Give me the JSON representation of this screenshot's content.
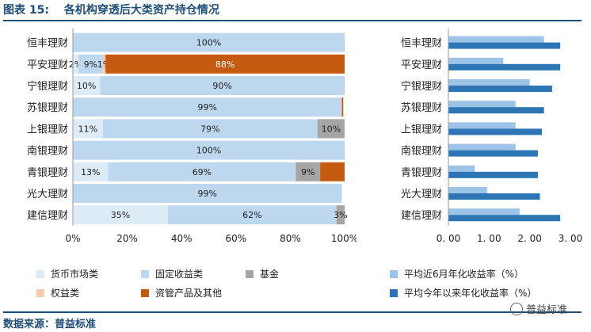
{
  "title": {
    "figure_no": "图表 15:",
    "text": "各机构穿透后大类资产持仓情况"
  },
  "source": "数据来源：普益标准",
  "watermark": "普益标准",
  "colors": {
    "money_market": "#ddebf7",
    "fixed_income": "#bdd7ee",
    "fund": "#a5a5a5",
    "equity": "#f8cbad",
    "asset_mgmt": "#c55a11",
    "six_month": "#9dc3e6",
    "ytd": "#2e75b6"
  },
  "legend_left": [
    {
      "key": "money_market",
      "label": "货币市场类"
    },
    {
      "key": "fixed_income",
      "label": "固定收益类"
    },
    {
      "key": "fund",
      "label": "基金"
    },
    {
      "key": "equity",
      "label": "权益类"
    },
    {
      "key": "asset_mgmt",
      "label": "资管产品及其他"
    }
  ],
  "legend_right": [
    {
      "key": "six_month",
      "label": "平均近6月年化收益率（%）"
    },
    {
      "key": "ytd",
      "label": "平均今年以来年化收益率（%）"
    }
  ],
  "chart_data": [
    {
      "type": "bar",
      "orientation": "horizontal",
      "stacked": "percent",
      "categories": [
        "恒丰理财",
        "平安理财",
        "宁银理财",
        "苏银理财",
        "上银理财",
        "南银理财",
        "青银理财",
        "光大理财",
        "建信理财"
      ],
      "xlim": [
        0,
        100
      ],
      "xticks": [
        "0%",
        "20%",
        "40%",
        "60%",
        "80%",
        "100%"
      ],
      "series": [
        {
          "name": "货币市场类",
          "values": [
            0,
            2,
            10,
            0,
            11,
            0,
            13,
            0,
            35
          ],
          "labels": [
            "",
            "2%",
            "10%",
            "",
            "11%",
            "",
            "13%",
            "",
            "35%"
          ]
        },
        {
          "name": "固定收益类",
          "values": [
            100,
            9,
            90,
            99,
            79,
            100,
            69,
            99,
            62
          ],
          "labels": [
            "100%",
            "9%",
            "90%",
            "99%",
            "79%",
            "100%",
            "69%",
            "99%",
            "62%"
          ]
        },
        {
          "name": "基金",
          "values": [
            0,
            0,
            0,
            0,
            10,
            0,
            9,
            0,
            3
          ],
          "labels": [
            "",
            "",
            "",
            "",
            "10%",
            "",
            "9%",
            "",
            "3%"
          ]
        },
        {
          "name": "权益类",
          "values": [
            0,
            1,
            0,
            0,
            0,
            0,
            0,
            0,
            0
          ],
          "labels": [
            "",
            "1%",
            "",
            "",
            "",
            "",
            "",
            "",
            ""
          ]
        },
        {
          "name": "资管产品及其他",
          "values": [
            0,
            88,
            0,
            0.5,
            0,
            0,
            9,
            0,
            0
          ],
          "labels": [
            "",
            "88%",
            "",
            "",
            "",
            "",
            "",
            "",
            ""
          ]
        }
      ]
    },
    {
      "type": "bar",
      "orientation": "horizontal",
      "categories": [
        "恒丰理财",
        "平安理财",
        "宁银理财",
        "苏银理财",
        "上银理财",
        "南银理财",
        "青银理财",
        "光大理财",
        "建信理财"
      ],
      "xlim": [
        0,
        3
      ],
      "xticks": [
        "0. 00",
        "1. 00",
        "2. 00",
        "3. 00"
      ],
      "series": [
        {
          "name": "平均近6月年化收益率（%）",
          "values": [
            2.35,
            1.35,
            2.0,
            1.65,
            1.65,
            1.65,
            0.65,
            0.95,
            1.75
          ]
        },
        {
          "name": "平均今年以来年化收益率（%）",
          "values": [
            2.75,
            2.75,
            2.55,
            2.35,
            2.3,
            2.2,
            2.2,
            2.25,
            2.75
          ]
        }
      ]
    }
  ]
}
